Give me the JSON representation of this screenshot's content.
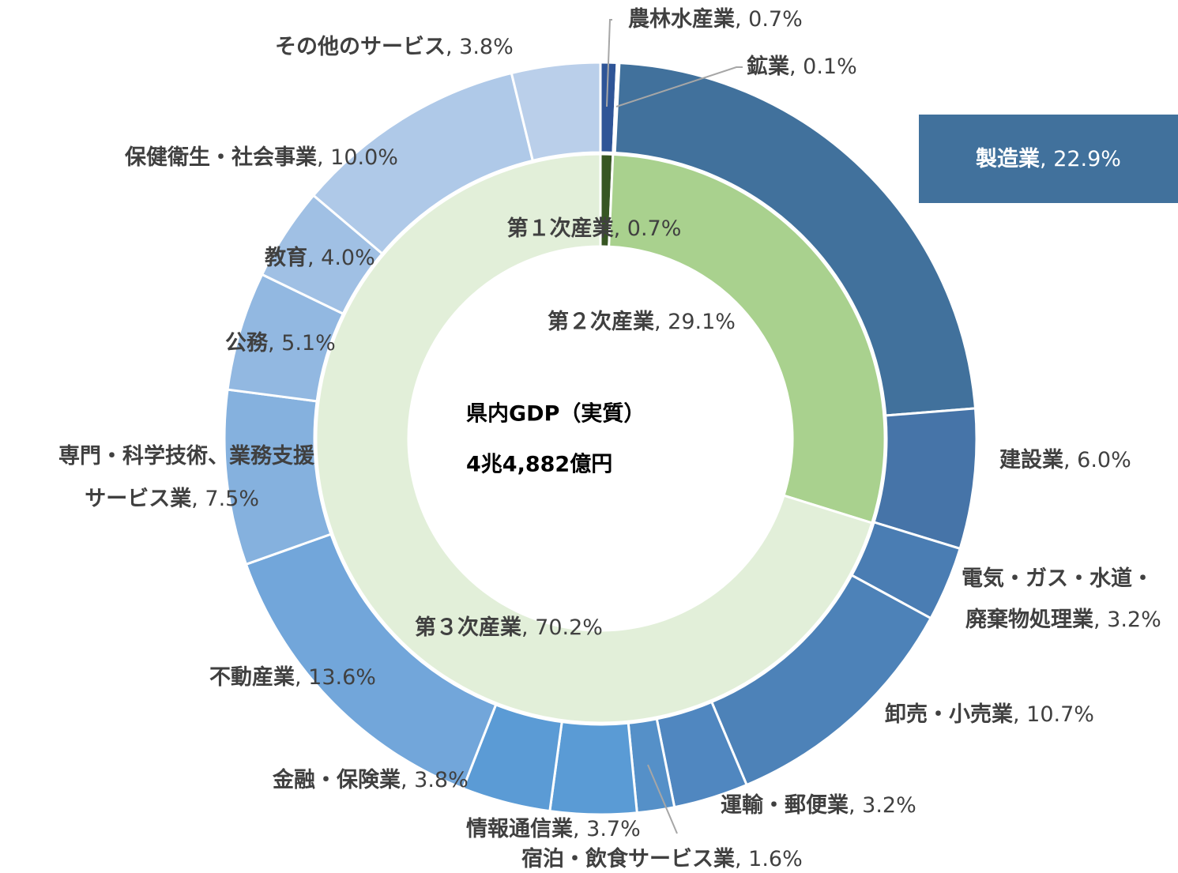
{
  "chart_data": {
    "type": "nested_donut",
    "center_text": [
      "県内GDP（実質）",
      "4兆4,882億円"
    ],
    "label_separator": ", ",
    "outer": {
      "categories": [
        "農林水産業",
        "鉱業",
        "製造業",
        "建設業",
        [
          "電気・ガス・水道・",
          "廃棄物処理業"
        ],
        "卸売・小売業",
        "運輸・郵便業",
        "宿泊・飲食サービス業",
        "情報通信業",
        "金融・保険業",
        "不動産業",
        [
          "専門・科学技術、業務支援",
          "サービス業"
        ],
        "公務",
        "教育",
        "保健衛生・社会事業",
        "その他のサービス"
      ],
      "values": [
        0.7,
        0.1,
        22.9,
        6.0,
        3.2,
        10.7,
        3.2,
        1.6,
        3.7,
        3.8,
        13.6,
        7.5,
        5.1,
        4.0,
        10.0,
        3.8
      ],
      "value_labels": [
        "0.7%",
        "0.1%",
        "22.9%",
        "6.0%",
        "3.2%",
        "10.7%",
        "3.2%",
        "1.6%",
        "3.7%",
        "3.8%",
        "13.6%",
        "7.5%",
        "5.1%",
        "4.0%",
        "10.0%",
        "3.8%"
      ],
      "colors": [
        "#2f5597",
        "#2f5597",
        "#41719c",
        "#4674a8",
        "#4a7db3",
        "#4d82b8",
        "#5087c0",
        "#5590c8",
        "#5a9bd5",
        "#5b9bd5",
        "#72a6da",
        "#85b1de",
        "#92b8e1",
        "#a0c0e4",
        "#afc9e8",
        "#bacfea"
      ]
    },
    "inner": {
      "categories": [
        "第１次産業",
        "第２次産業",
        "第３次産業"
      ],
      "values": [
        0.7,
        29.1,
        70.2
      ],
      "value_labels": [
        "0.7%",
        "29.1%",
        "70.2%"
      ],
      "colors": [
        "#375623",
        "#a9d18e",
        "#e2efd9"
      ]
    }
  }
}
